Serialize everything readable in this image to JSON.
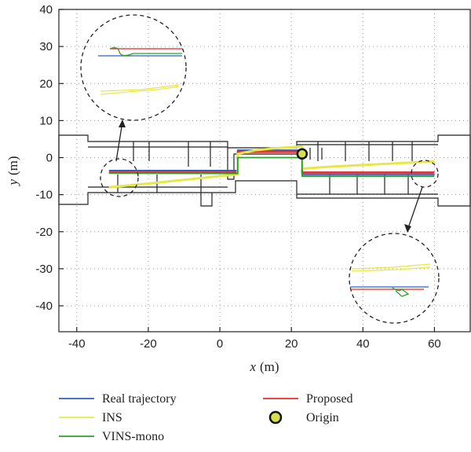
{
  "chart_data": {
    "type": "line",
    "title": "",
    "xlabel_var": "x",
    "xlabel_unit": "(m)",
    "ylabel_var": "y",
    "ylabel_unit": "(m)",
    "xlim": [
      -45,
      70
    ],
    "ylim": [
      -47,
      40
    ],
    "xticks": [
      -40,
      -20,
      0,
      20,
      40,
      60
    ],
    "yticks": [
      40,
      30,
      20,
      10,
      0,
      -10,
      -20,
      -30,
      -40
    ],
    "grid": "dotted",
    "legend_position": "bottom",
    "series": [
      {
        "name": "Real trajectory",
        "color": "#2f5fc4",
        "x": [
          -31,
          5,
          5,
          23,
          23,
          60
        ],
        "y": [
          -3.5,
          -3.5,
          2,
          2,
          -4.5,
          -4.5
        ]
      },
      {
        "name": "Proposed",
        "color": "#e8282b",
        "x": [
          -31,
          5,
          5,
          23,
          23,
          60
        ],
        "y": [
          -4,
          -4,
          1.5,
          1.5,
          -4,
          -4
        ]
      },
      {
        "name": "INS",
        "color": "#e6e84a",
        "x": [
          -31,
          -20,
          -10,
          0,
          5,
          5,
          10,
          15,
          23,
          23,
          30,
          40,
          50,
          60
        ],
        "y": [
          -8,
          -7,
          -6,
          -5,
          -4.5,
          1,
          2,
          2.5,
          3,
          -3,
          -2.5,
          -2,
          -1.5,
          -1
        ]
      },
      {
        "name": "VINS-mono",
        "color": "#2ca02c",
        "x": [
          -31,
          5,
          5,
          23,
          23,
          60
        ],
        "y": [
          -4.2,
          -4.3,
          0,
          0,
          -5,
          -5
        ]
      }
    ],
    "origin": {
      "name": "Origin",
      "x": 23,
      "y": 1,
      "color": "#d6e04a"
    }
  },
  "legend": [
    {
      "name": "Real trajectory",
      "kind": "line",
      "color": "#2f5fc4"
    },
    {
      "name": "Proposed",
      "kind": "line",
      "color": "#e8282b"
    },
    {
      "name": "INS",
      "kind": "line",
      "color": "#e6e84a"
    },
    {
      "name": "Origin",
      "kind": "marker",
      "color": "#d6e04a"
    },
    {
      "name": "VINS-mono",
      "kind": "line",
      "color": "#2ca02c"
    }
  ]
}
